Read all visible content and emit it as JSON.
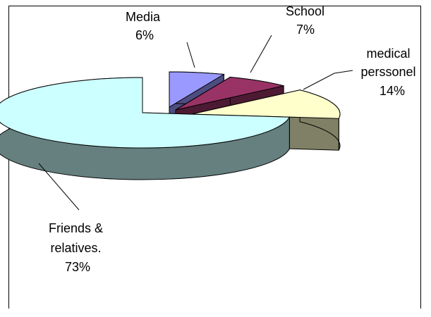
{
  "chart_data": {
    "type": "pie",
    "title": "",
    "slices": [
      {
        "name": "Media",
        "value": 6,
        "value_label": "6%",
        "top_color": "#9999ff",
        "side_color": "#4d4d80"
      },
      {
        "name": "School",
        "value": 7,
        "value_label": "7%",
        "top_color": "#993366",
        "side_color": "#4d1a33"
      },
      {
        "name": "medical perssonel",
        "value": 14,
        "value_label": "14%",
        "top_color": "#ffffcc",
        "side_color": "#808066"
      },
      {
        "name": "Friends & relatives.",
        "value": 73,
        "value_label": "73%",
        "top_color": "#ccffff",
        "side_color": "#668080"
      }
    ],
    "legend": "none",
    "style": "3d-exploded"
  }
}
